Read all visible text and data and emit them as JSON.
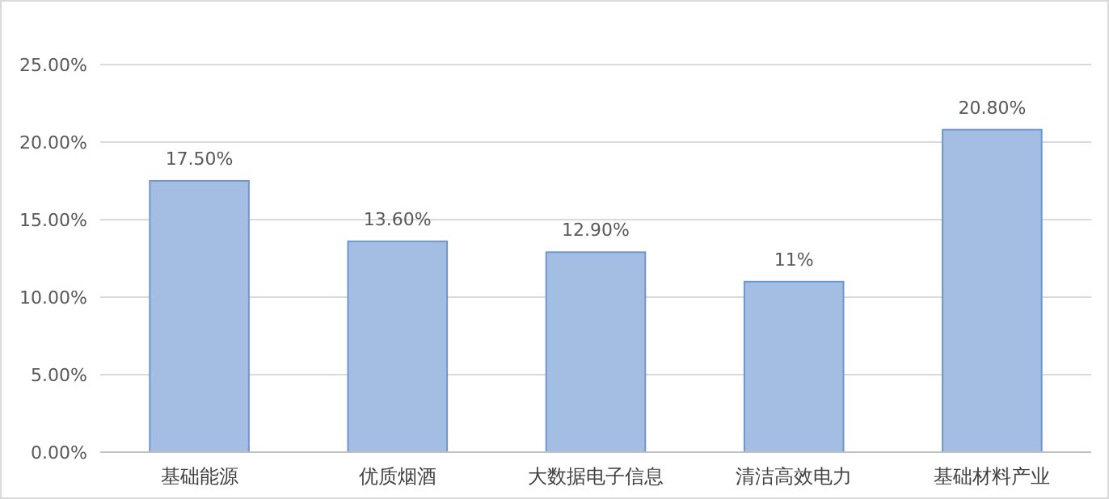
{
  "chart_data": {
    "type": "bar",
    "categories": [
      "基础能源",
      "优质烟酒",
      "大数据电子信息",
      "清洁高效电力",
      "基础材料产业"
    ],
    "values": [
      17.5,
      13.6,
      12.9,
      11,
      20.8
    ],
    "value_labels": [
      "17.50%",
      "13.60%",
      "12.90%",
      "11%",
      "20.80%"
    ],
    "color": "#a3bde3",
    "ylim": [
      0,
      25
    ],
    "yticks": [
      {
        "value": 0,
        "label": "0.00%"
      },
      {
        "value": 5,
        "label": "5.00%"
      },
      {
        "value": 10,
        "label": "10.00%"
      },
      {
        "value": 15,
        "label": "15.00%"
      },
      {
        "value": 20,
        "label": "20.00%"
      },
      {
        "value": 25,
        "label": "25.00%"
      }
    ],
    "grid": "y"
  }
}
